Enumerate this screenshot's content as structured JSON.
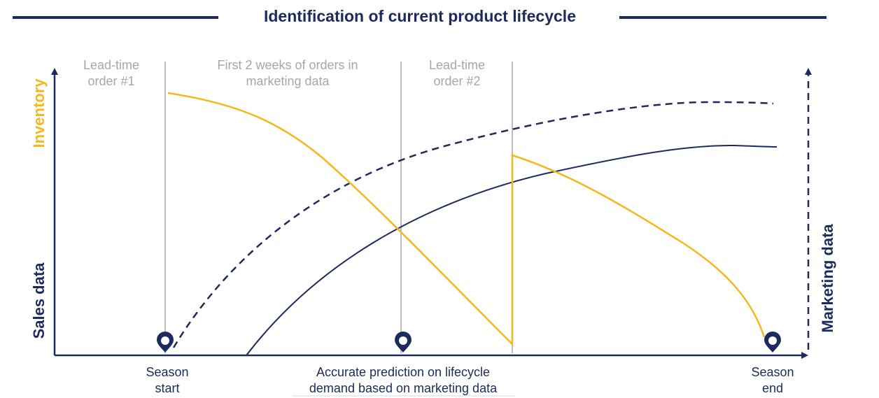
{
  "title": "Identification of current product lifecycle",
  "axes": {
    "left_top": "Inventory",
    "left_bottom": "Sales data",
    "right": "Marketing data"
  },
  "phases": [
    {
      "line1": "Lead-time",
      "line2": "order #1"
    },
    {
      "line1": "First 2 weeks of orders in",
      "line2": "marketing data"
    },
    {
      "line1": "Lead-time",
      "line2": "order #2"
    }
  ],
  "milestones": [
    {
      "line1": "Season",
      "line2": "start"
    },
    {
      "line1": "Accurate prediction on lifecycle",
      "line2": "demand based on marketing data"
    },
    {
      "line1": "Season",
      "line2": "end"
    }
  ],
  "colors": {
    "navy": "#1c2a5e",
    "gold": "#f5b71a",
    "gray": "#a7a7a7"
  },
  "icons": [
    "location-pin-icon",
    "location-pin-icon",
    "location-pin-icon"
  ]
}
